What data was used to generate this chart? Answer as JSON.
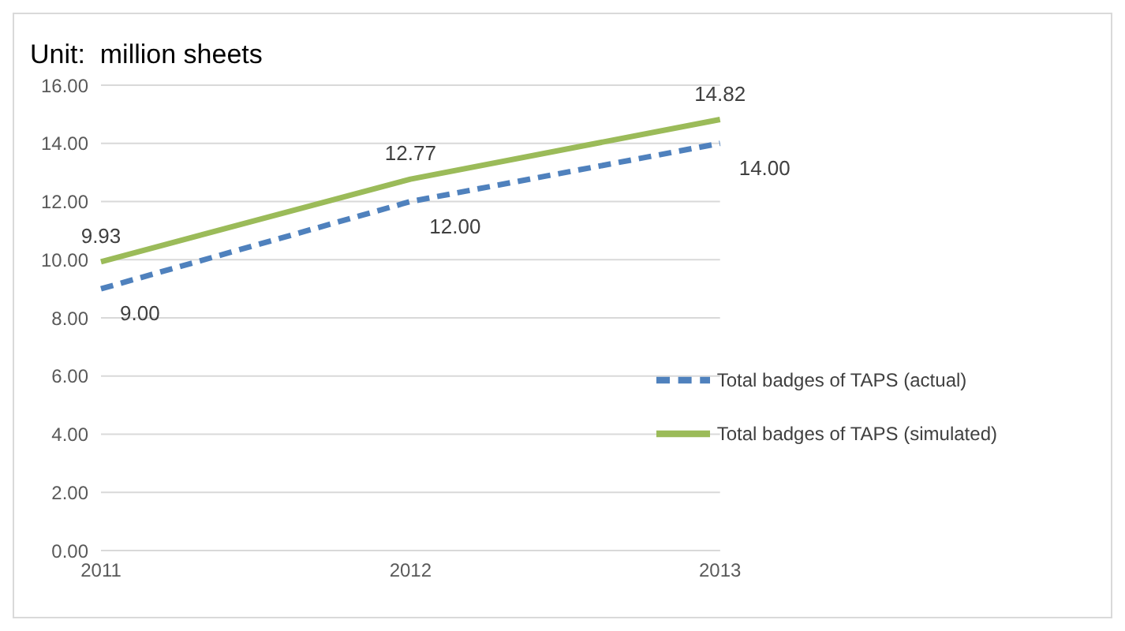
{
  "chart_data": {
    "type": "line",
    "title": "Unit:  million sheets",
    "categories": [
      "2011",
      "2012",
      "2013"
    ],
    "series": [
      {
        "name": "Total badges of TAPS (actual)",
        "color": "#4f81bd",
        "line_style": "dashed",
        "values": [
          9.0,
          12.0,
          14.0
        ],
        "value_labels": [
          "9.00",
          "12.00",
          "14.00"
        ]
      },
      {
        "name": "Total badges of TAPS (simulated)",
        "color": "#9bbb59",
        "line_style": "solid",
        "values": [
          9.93,
          12.77,
          14.82
        ],
        "value_labels": [
          "9.93",
          "12.77",
          "14.82"
        ]
      }
    ],
    "ylim": [
      0,
      16
    ],
    "yticks": [
      {
        "value": 0,
        "label": "0.00"
      },
      {
        "value": 2,
        "label": "2.00"
      },
      {
        "value": 4,
        "label": "4.00"
      },
      {
        "value": 6,
        "label": "6.00"
      },
      {
        "value": 8,
        "label": "8.00"
      },
      {
        "value": 10,
        "label": "10.00"
      },
      {
        "value": 12,
        "label": "12.00"
      },
      {
        "value": 14,
        "label": "14.00"
      },
      {
        "value": 16,
        "label": "16.00"
      }
    ],
    "grid": "y",
    "legend": "right",
    "marker": "none"
  }
}
